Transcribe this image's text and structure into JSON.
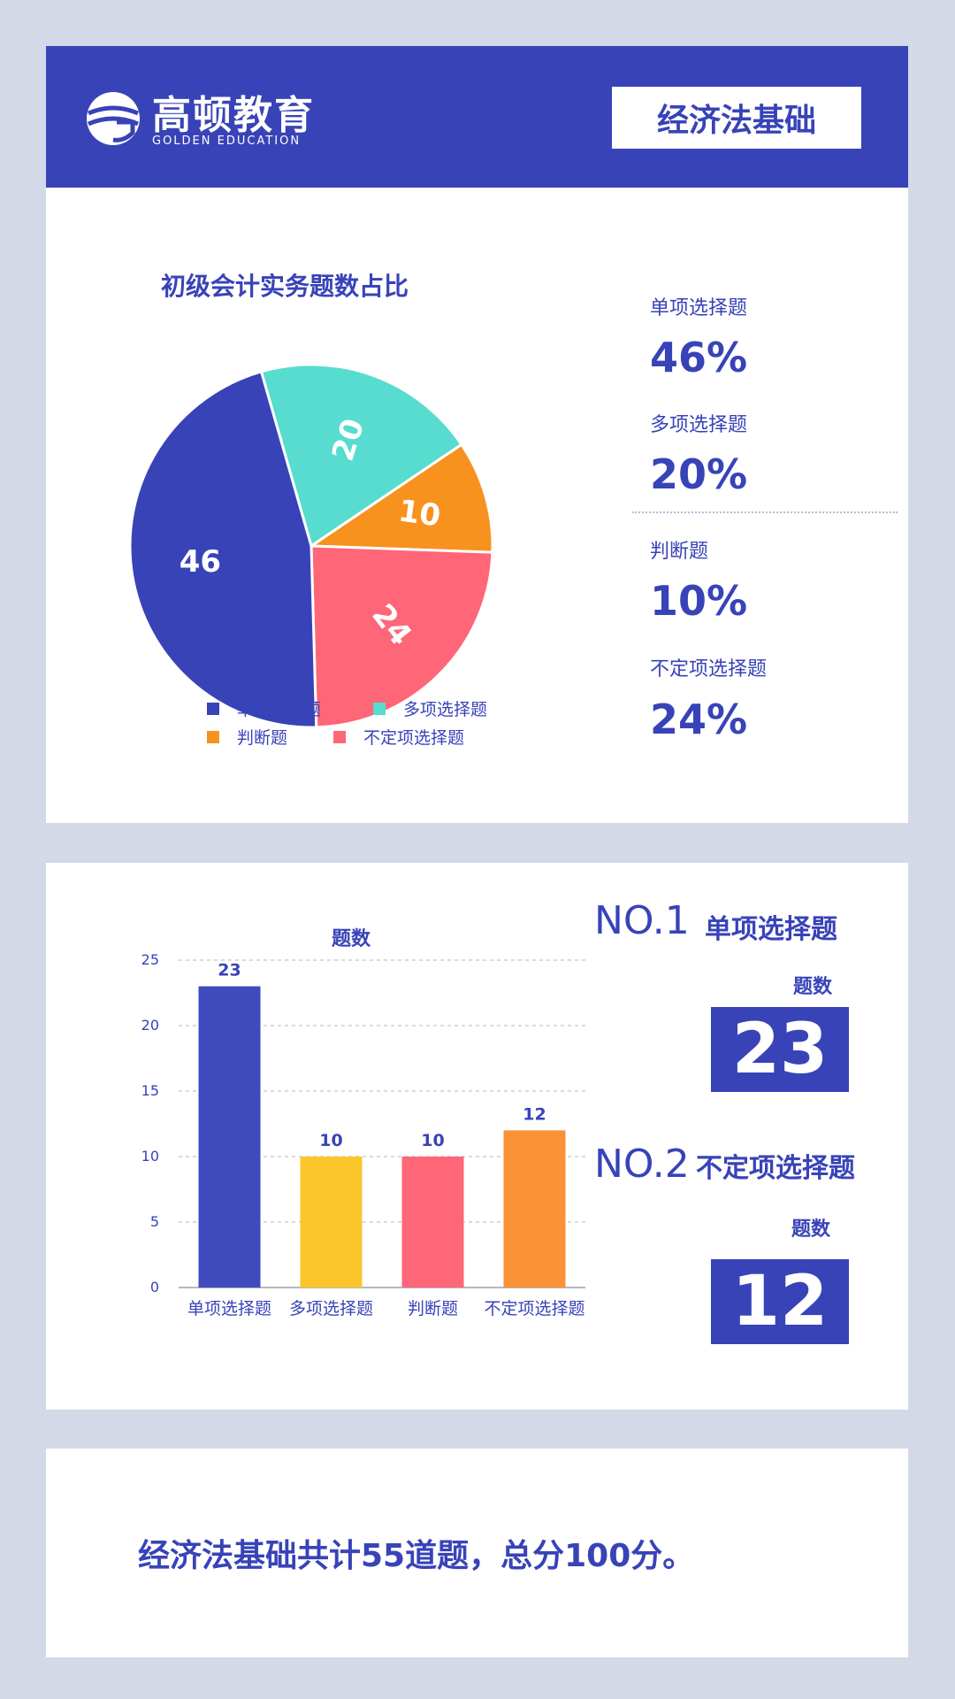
{
  "header": {
    "logo_cn": "高顿教育",
    "logo_en": "GOLDEN EDUCATION",
    "title": "经济法基础"
  },
  "colors": {
    "primary": "#3843b8",
    "teal": "#57dccf",
    "orange": "#f7921e",
    "red": "#ff6677",
    "yellow": "#fbc62a",
    "bar_orange": "#fb9136"
  },
  "pie": {
    "title": "初级会计实务题数占比",
    "legend": [
      "单项选择题",
      "多项选择题",
      "判断题",
      "不定项选择题"
    ]
  },
  "stats": [
    {
      "label": "单项选择题",
      "value": "46%"
    },
    {
      "label": "多项选择题",
      "value": "20%"
    },
    {
      "label": "判断题",
      "value": "10%"
    },
    {
      "label": "不定项选择题",
      "value": "24%"
    }
  ],
  "bar": {
    "ylabel": "题数"
  },
  "ranking": {
    "no1": "NO.1",
    "no1_name": "单项选择题",
    "no1_caption": "题数",
    "no1_value": "23",
    "no2": "NO.2",
    "no2_name": "不定项选择题",
    "no2_caption": "题数",
    "no2_value": "12"
  },
  "summary": "经济法基础共计55道题，总分100分。",
  "chart_data": [
    {
      "type": "pie",
      "title": "初级会计实务题数占比",
      "categories": [
        "单项选择题",
        "多项选择题",
        "判断题",
        "不定项选择题"
      ],
      "values": [
        46,
        20,
        10,
        24
      ],
      "colors": [
        "#3843b8",
        "#57dccf",
        "#f7921e",
        "#ff6677"
      ]
    },
    {
      "type": "bar",
      "ylabel": "题数",
      "categories": [
        "单项选择题",
        "多项选择题",
        "判断题",
        "不定项选择题"
      ],
      "values": [
        23,
        10,
        10,
        12
      ],
      "colors": [
        "#3f4bbd",
        "#fbc62a",
        "#ff6677",
        "#fb9136"
      ],
      "ylim": [
        0,
        25
      ],
      "yticks": [
        0,
        5,
        10,
        15,
        20,
        25
      ],
      "grid": true
    }
  ]
}
